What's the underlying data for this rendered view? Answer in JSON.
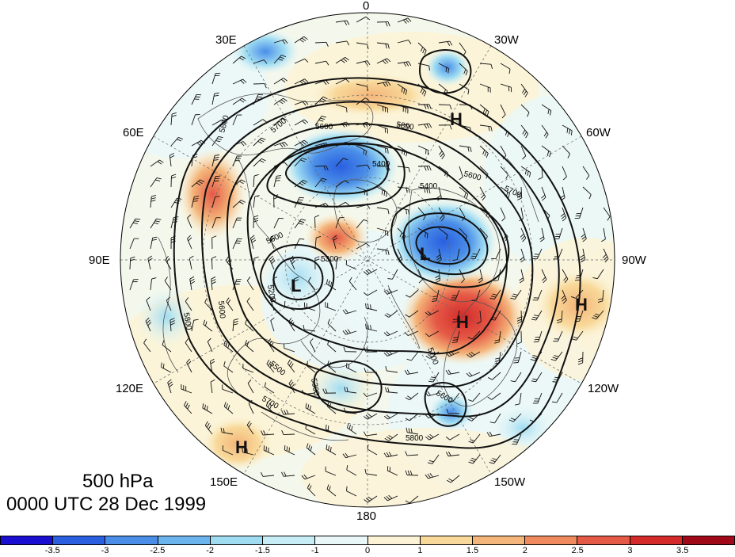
{
  "level": "500 hPa",
  "datetime": "0000 UTC 28 Dec 1999",
  "longitude_labels": {
    "lon_0": "0",
    "lon_30w": "30W",
    "lon_60w": "60W",
    "lon_90w": "90W",
    "lon_120w": "120W",
    "lon_150w": "150W",
    "lon_180": "180",
    "lon_150e": "150E",
    "lon_120e": "120E",
    "lon_90e": "90E",
    "lon_60e": "60E",
    "lon_30e": "30E"
  },
  "pressure_centers": [
    {
      "name": "high-center-north-atlantic",
      "label": "H"
    },
    {
      "name": "high-center-north-america",
      "label": "H"
    },
    {
      "name": "high-center-east-pacific",
      "label": "H"
    },
    {
      "name": "high-center-west-pacific",
      "label": "H"
    },
    {
      "name": "low-center-arctic-canada",
      "label": "L"
    },
    {
      "name": "low-center-siberia",
      "label": "L"
    }
  ],
  "contour_labels": [
    "5800",
    "5600",
    "5400",
    "5600",
    "5700",
    "5700",
    "5400",
    "5800",
    "5600",
    "5200",
    "5300",
    "5600",
    "5800",
    "5500",
    "5300",
    "5700",
    "5700",
    "5600",
    "5800"
  ],
  "colorbar": {
    "colors": [
      "#1a0fd0",
      "#2a5fe0",
      "#4a8ee8",
      "#6cb4ee",
      "#9fdcf2",
      "#c6ecf6",
      "#eaf7f8",
      "#fcf3d6",
      "#f8d99a",
      "#f4b57a",
      "#ee8a5e",
      "#e55a46",
      "#d42a2a",
      "#a00a18"
    ],
    "ticks": [
      "-3.5",
      "-3",
      "-2.5",
      "-2",
      "-1.5",
      "-1",
      "0",
      "1",
      "1.5",
      "2",
      "2.5",
      "3",
      "3.5"
    ]
  }
}
